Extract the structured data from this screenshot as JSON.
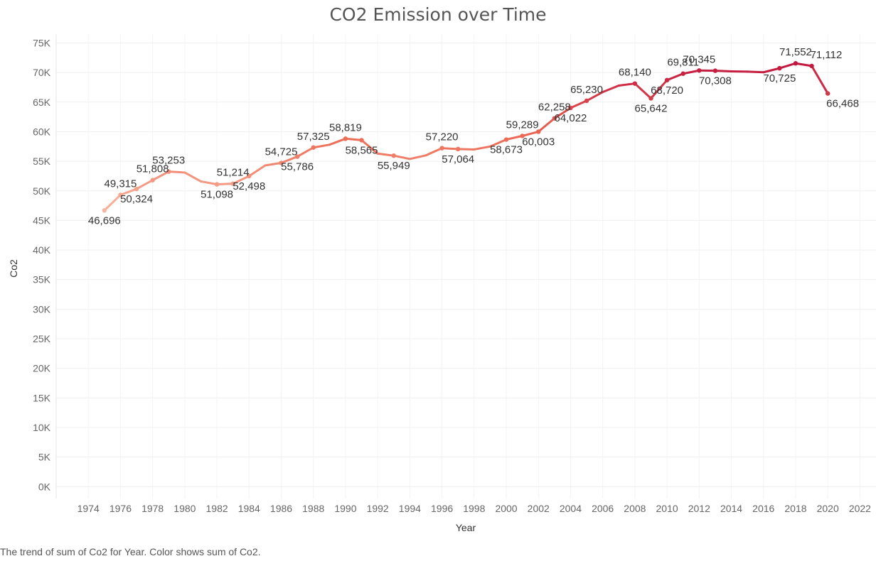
{
  "chart_data": {
    "type": "line",
    "title": "CO2 Emission over Time",
    "xlabel": "Year",
    "ylabel": "Co2",
    "caption": "The trend of sum of Co2 for Year.  Color shows sum of Co2.",
    "xlim": [
      1972,
      2023
    ],
    "ylim": [
      -2000,
      76500
    ],
    "x_ticks": [
      1974,
      1976,
      1978,
      1980,
      1982,
      1984,
      1986,
      1988,
      1990,
      1992,
      1994,
      1996,
      1998,
      2000,
      2002,
      2004,
      2006,
      2008,
      2010,
      2012,
      2014,
      2016,
      2018,
      2020,
      2022
    ],
    "y_ticks": [
      {
        "value": 0,
        "label": "0K"
      },
      {
        "value": 5000,
        "label": "5K"
      },
      {
        "value": 10000,
        "label": "10K"
      },
      {
        "value": 15000,
        "label": "15K"
      },
      {
        "value": 20000,
        "label": "20K"
      },
      {
        "value": 25000,
        "label": "25K"
      },
      {
        "value": 30000,
        "label": "30K"
      },
      {
        "value": 35000,
        "label": "35K"
      },
      {
        "value": 40000,
        "label": "40K"
      },
      {
        "value": 45000,
        "label": "45K"
      },
      {
        "value": 50000,
        "label": "50K"
      },
      {
        "value": 55000,
        "label": "55K"
      },
      {
        "value": 60000,
        "label": "60K"
      },
      {
        "value": 65000,
        "label": "65K"
      },
      {
        "value": 70000,
        "label": "70K"
      },
      {
        "value": 75000,
        "label": "75K"
      }
    ],
    "grid": true,
    "color_scale": {
      "low": "#f8b7a0",
      "mid": "#ec6a55",
      "high": "#c1163f",
      "min": 46696,
      "max": 71552
    },
    "series": [
      {
        "x": [
          1975,
          1976,
          1977,
          1978,
          1979,
          1980,
          1981,
          1982,
          1983,
          1984,
          1985,
          1986,
          1987,
          1988,
          1989,
          1990,
          1991,
          1992,
          1993,
          1994,
          1995,
          1996,
          1997,
          1998,
          1999,
          2000,
          2001,
          2002,
          2003,
          2004,
          2005,
          2006,
          2007,
          2008,
          2009,
          2010,
          2011,
          2012,
          2013,
          2014,
          2015,
          2016,
          2017,
          2018,
          2019,
          2020
        ],
        "y": [
          46696,
          49315,
          50324,
          51808,
          53253,
          53100,
          51600,
          51098,
          51214,
          52498,
          54300,
          54725,
          55786,
          57325,
          57800,
          58819,
          58565,
          56300,
          55949,
          55400,
          56000,
          57220,
          57064,
          57000,
          57500,
          58673,
          59289,
          60003,
          62258,
          64022,
          65230,
          66700,
          67800,
          68140,
          65642,
          68720,
          69811,
          70345,
          70308,
          70200,
          70150,
          70050,
          70725,
          71552,
          71112,
          66468
        ],
        "labels": [
          {
            "x": 1975,
            "text": "46,696"
          },
          {
            "x": 1976,
            "text": "49,315"
          },
          {
            "x": 1977,
            "text": "50,324"
          },
          {
            "x": 1978,
            "text": "51,808"
          },
          {
            "x": 1979,
            "text": "53,253"
          },
          {
            "x": 1982,
            "text": "51,098"
          },
          {
            "x": 1983,
            "text": "51,214"
          },
          {
            "x": 1984,
            "text": "52,498"
          },
          {
            "x": 1986,
            "text": "54,725"
          },
          {
            "x": 1987,
            "text": "55,786"
          },
          {
            "x": 1988,
            "text": "57,325"
          },
          {
            "x": 1990,
            "text": "58,819"
          },
          {
            "x": 1991,
            "text": "58,565"
          },
          {
            "x": 1993,
            "text": "55,949"
          },
          {
            "x": 1996,
            "text": "57,220"
          },
          {
            "x": 1997,
            "text": "57,064"
          },
          {
            "x": 2000,
            "text": "58,673"
          },
          {
            "x": 2001,
            "text": "59,289"
          },
          {
            "x": 2002,
            "text": "60,003"
          },
          {
            "x": 2003,
            "text": "62,258"
          },
          {
            "x": 2004,
            "text": "64,022"
          },
          {
            "x": 2005,
            "text": "65,230"
          },
          {
            "x": 2008,
            "text": "68,140"
          },
          {
            "x": 2009,
            "text": "65,642"
          },
          {
            "x": 2010,
            "text": "68,720"
          },
          {
            "x": 2011,
            "text": "69,811"
          },
          {
            "x": 2012,
            "text": "70,345"
          },
          {
            "x": 2013,
            "text": "70,308"
          },
          {
            "x": 2017,
            "text": "70,725"
          },
          {
            "x": 2018,
            "text": "71,552"
          },
          {
            "x": 2019,
            "text": "71,112"
          },
          {
            "x": 2020,
            "text": "66,468"
          }
        ]
      }
    ]
  }
}
